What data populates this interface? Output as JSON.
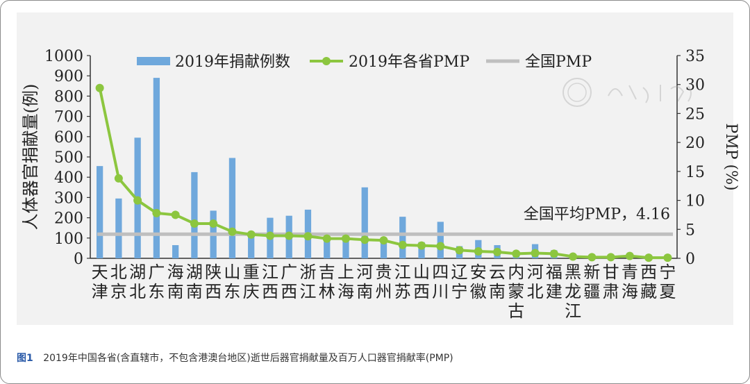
{
  "colors": {
    "bar": "#6fa8dc",
    "line": "#8cc63f",
    "avg": "#bfbfbf",
    "axis": "#333333",
    "fig_label": "#2a5aa8"
  },
  "chart_data": {
    "type": "bar",
    "title": "",
    "ylabel": "人体器官捐献量(例)",
    "y2label": "PMP (%)",
    "ylim": [
      0,
      1000
    ],
    "y2lim": [
      0,
      35
    ],
    "yticks": [
      "0",
      "100",
      "200",
      "300",
      "400",
      "500",
      "600",
      "700",
      "800",
      "900",
      "1000"
    ],
    "y2ticks": [
      "0",
      "5",
      "10",
      "15",
      "20",
      "25",
      "30",
      "35"
    ],
    "legend": {
      "bars": "2019年捐献例数",
      "line": "2019年各省PMP",
      "avg": "全国PMP"
    },
    "avg_value": 4.16,
    "avg_annotation": "全国平均PMP，4.16",
    "categories": [
      [
        "天",
        "津"
      ],
      [
        "北",
        "京"
      ],
      [
        "湖",
        "北"
      ],
      [
        "广",
        "东"
      ],
      [
        "海",
        "南"
      ],
      [
        "湖",
        "南"
      ],
      [
        "陕",
        "西"
      ],
      [
        "山",
        "东"
      ],
      [
        "重",
        "庆"
      ],
      [
        "江",
        "西"
      ],
      [
        "广",
        "西"
      ],
      [
        "浙",
        "江"
      ],
      [
        "吉",
        "林"
      ],
      [
        "上",
        "海"
      ],
      [
        "河",
        "南"
      ],
      [
        "贵",
        "州"
      ],
      [
        "江",
        "苏"
      ],
      [
        "山",
        "西"
      ],
      [
        "四",
        "川"
      ],
      [
        "辽",
        "宁"
      ],
      [
        "安",
        "徽"
      ],
      [
        "云",
        "南"
      ],
      [
        "内",
        "蒙",
        "古"
      ],
      [
        "河",
        "北"
      ],
      [
        "福",
        "建"
      ],
      [
        "黑",
        "龙",
        "江"
      ],
      [
        "新",
        "疆"
      ],
      [
        "甘",
        "肃"
      ],
      [
        "青",
        "海"
      ],
      [
        "西",
        "藏"
      ],
      [
        "宁",
        "夏"
      ]
    ],
    "series": [
      {
        "name": "2019年捐献例数",
        "axis": "left",
        "values": [
          455,
          295,
          595,
          890,
          65,
          425,
          235,
          495,
          125,
          200,
          210,
          240,
          115,
          120,
          350,
          100,
          205,
          80,
          180,
          60,
          90,
          65,
          25,
          70,
          40,
          15,
          10,
          15,
          10,
          5,
          10
        ]
      },
      {
        "name": "2019年各省PMP",
        "axis": "right",
        "values": [
          29.4,
          13.8,
          10.0,
          7.8,
          7.5,
          6.0,
          6.0,
          4.6,
          4.1,
          3.9,
          3.9,
          3.8,
          3.4,
          3.4,
          3.2,
          3.1,
          2.3,
          2.2,
          2.1,
          1.4,
          1.2,
          1.1,
          0.8,
          0.9,
          0.8,
          0.3,
          0.2,
          0.2,
          0.4,
          0.1,
          0.1
        ]
      }
    ]
  },
  "caption": {
    "figure_label": "图1",
    "text": "2019年中国各省(含直辖市，不包含港澳台地区)逝世后器官捐献量及百万人口器官捐献率(PMP)"
  }
}
